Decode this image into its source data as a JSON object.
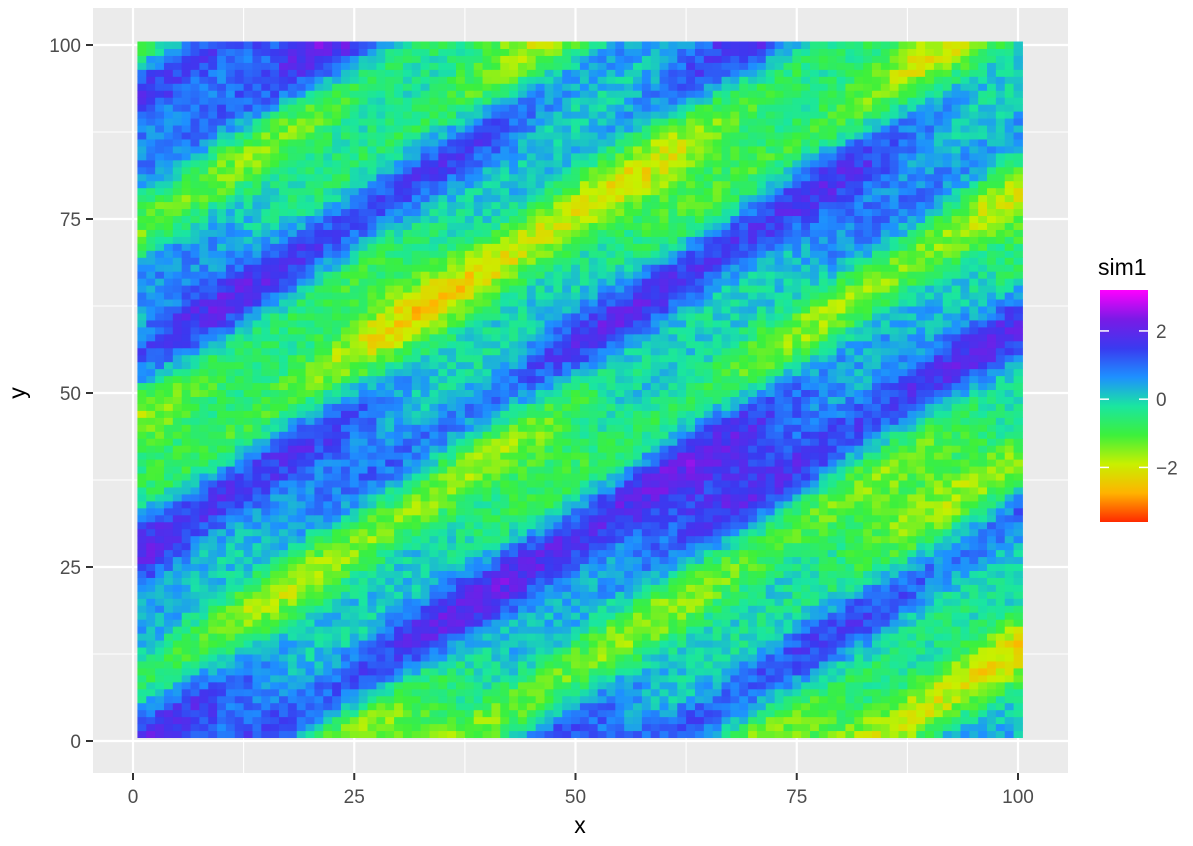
{
  "chart_data": {
    "type": "heatmap",
    "title": "",
    "xlabel": "x",
    "ylabel": "y",
    "xlim": [
      0,
      100
    ],
    "ylim": [
      0,
      100
    ],
    "grid": true,
    "background": "#EBEBEB",
    "grid_color": "#FFFFFF",
    "x_ticks": [
      0,
      25,
      50,
      75,
      100
    ],
    "x_tick_labels": [
      "0",
      "25",
      "50",
      "75",
      "100"
    ],
    "y_ticks": [
      0,
      25,
      50,
      75,
      100
    ],
    "y_tick_labels": [
      "0",
      "25",
      "50",
      "75",
      "100"
    ],
    "grid_cells": {
      "nx": 100,
      "ny": 100,
      "x_start": 1,
      "y_start": 1,
      "cell_size": 1
    },
    "pattern": "diagonal bands rising from lower-left to upper-right",
    "legend": {
      "title": "sim1",
      "placement": "right",
      "value_range": [
        -3.6,
        3.2
      ],
      "tick_values": [
        2,
        0,
        -2
      ],
      "tick_labels": [
        "2",
        "0",
        "−2"
      ],
      "colors": [
        "#FF2A00",
        "#FFB300",
        "#C8F000",
        "#3CF03C",
        "#1AE6A0",
        "#1E90FF",
        "#3A3AF0",
        "#7A1AE6",
        "#FF00FF"
      ]
    }
  }
}
